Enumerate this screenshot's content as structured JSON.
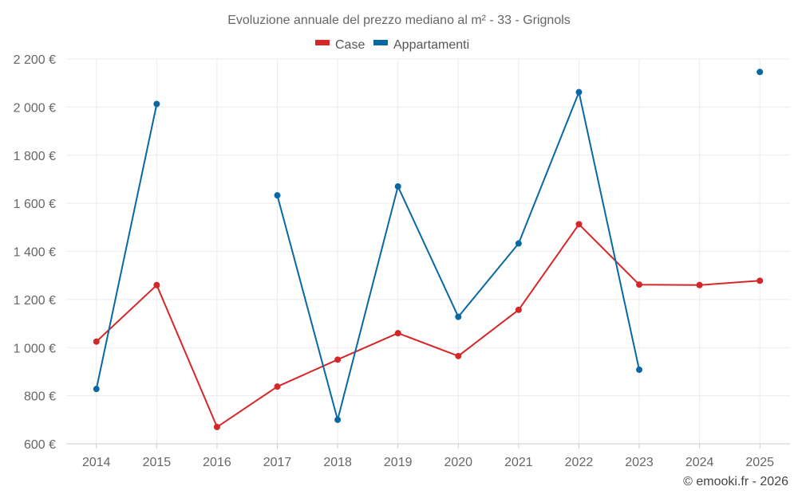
{
  "chart_data": {
    "type": "line",
    "title": "Evoluzione annuale del prezzo mediano al m² - 33 - Grignols",
    "categories": [
      "2014",
      "2015",
      "2016",
      "2017",
      "2018",
      "2019",
      "2020",
      "2021",
      "2022",
      "2023",
      "2024",
      "2025"
    ],
    "ylim": [
      600,
      2200
    ],
    "yticks": [
      600,
      800,
      1000,
      1200,
      1400,
      1600,
      1800,
      2000,
      2200
    ],
    "ytick_labels": [
      "600 €",
      "800 €",
      "1 000 €",
      "1 200 €",
      "1 400 €",
      "1 600 €",
      "1 800 €",
      "2 000 €",
      "2 200 €"
    ],
    "grid": true,
    "legend_position": "top-center",
    "series": [
      {
        "name": "Case",
        "color": "#d62728",
        "values": [
          1025,
          1260,
          670,
          838,
          950,
          1060,
          965,
          1157,
          1513,
          1262,
          1260,
          1278
        ]
      },
      {
        "name": "Appartamenti",
        "color": "#0868a3",
        "values": [
          828,
          2013,
          null,
          1633,
          700,
          1670,
          1128,
          1433,
          2062,
          908,
          null,
          2146
        ]
      }
    ],
    "credit": "© emooki.fr - 2026"
  }
}
